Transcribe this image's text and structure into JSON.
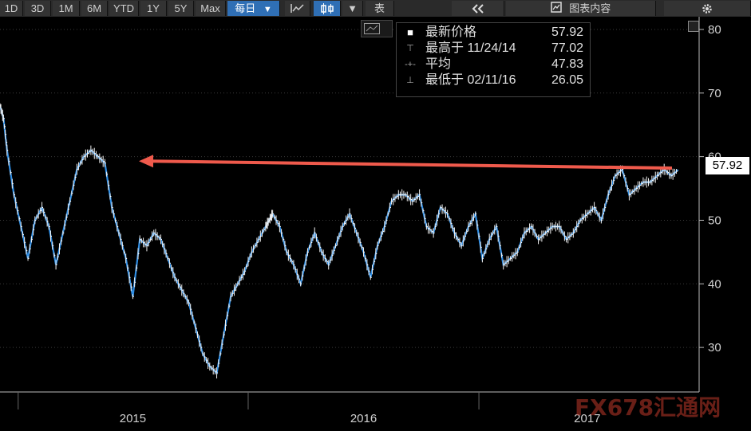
{
  "toolbar": {
    "periods": [
      "1D",
      "3D",
      "1M",
      "6M",
      "YTD",
      "1Y",
      "5Y",
      "Max"
    ],
    "frequency": "每日",
    "frequency_arrow": "▼",
    "line_icon": "line-chart-icon",
    "candle_icon": "candlestick-icon",
    "candle_arrow": "▼",
    "table_label": "表",
    "collapse_icon": "double-chevron-left-icon",
    "content_icon": "chart-content-icon",
    "content_label": "图表内容",
    "settings_icon": "gear-icon"
  },
  "legend": {
    "rows": [
      {
        "label": "最新价格",
        "value": "57.92"
      },
      {
        "label": "最高于 11/24/14",
        "value": "77.02"
      },
      {
        "label": "平均",
        "value": "47.83"
      },
      {
        "label": "最低于 02/11/16",
        "value": "26.05"
      }
    ]
  },
  "last_price_tag": "57.92",
  "watermark": "FX678汇通网",
  "colors": {
    "line": "#2f8ee5",
    "arrow": "#ef5a4c",
    "background": "#000000",
    "text": "#d0d0d0"
  },
  "chart_data": {
    "type": "line",
    "y_ticks": [
      "80",
      "70",
      "60",
      "50",
      "40",
      "30"
    ],
    "x_labels": [
      "2015",
      "2016",
      "2017"
    ],
    "ylim": [
      23,
      82
    ],
    "series": [
      {
        "x": [
          0,
          0.005,
          0.01,
          0.02,
          0.03,
          0.04,
          0.05,
          0.06,
          0.07,
          0.08,
          0.09,
          0.1,
          0.11,
          0.12,
          0.13,
          0.14,
          0.15,
          0.16,
          0.17,
          0.18,
          0.19,
          0.2,
          0.21,
          0.22,
          0.23,
          0.24,
          0.25,
          0.26,
          0.27,
          0.28,
          0.29,
          0.3,
          0.31,
          0.32,
          0.33,
          0.34,
          0.35,
          0.36,
          0.37,
          0.38,
          0.385,
          0.39,
          0.4,
          0.41,
          0.42,
          0.43,
          0.44,
          0.45,
          0.46,
          0.47,
          0.48,
          0.49,
          0.5,
          0.51,
          0.52,
          0.53,
          0.54,
          0.55,
          0.56,
          0.57,
          0.58,
          0.59,
          0.6,
          0.61,
          0.62,
          0.63,
          0.64,
          0.65,
          0.66,
          0.67,
          0.68,
          0.69,
          0.7,
          0.71,
          0.72,
          0.73,
          0.74,
          0.75,
          0.76,
          0.77,
          0.78,
          0.79,
          0.8,
          0.81,
          0.82,
          0.83,
          0.84,
          0.85,
          0.86,
          0.87,
          0.88,
          0.89,
          0.9,
          0.91,
          0.92,
          0.93,
          0.94,
          0.95,
          0.96,
          0.97
        ],
        "y": [
          68,
          66,
          61,
          54,
          49,
          44,
          50,
          52,
          49,
          43,
          48,
          53,
          58,
          60,
          61,
          60,
          59,
          52,
          48,
          44,
          38,
          47,
          46,
          48,
          47,
          44,
          41,
          39,
          37,
          33,
          29,
          27,
          26,
          32,
          38,
          40,
          42,
          45,
          47,
          49,
          50,
          51,
          49,
          45,
          43,
          40,
          45,
          48,
          45,
          43,
          46,
          49,
          51,
          48,
          45,
          41,
          46,
          49,
          53,
          54,
          54,
          53,
          54,
          49,
          48,
          52,
          51,
          48,
          46,
          49,
          51,
          44,
          47,
          49,
          43,
          44,
          45,
          48,
          49,
          47,
          48,
          49,
          49,
          47,
          48,
          50,
          51,
          52,
          50,
          54,
          57,
          58,
          54,
          55,
          56,
          56,
          57,
          58,
          57,
          57.92
        ]
      }
    ],
    "annotation": {
      "type": "arrow",
      "from_y": 58.2,
      "to_y": 59.3
    }
  }
}
